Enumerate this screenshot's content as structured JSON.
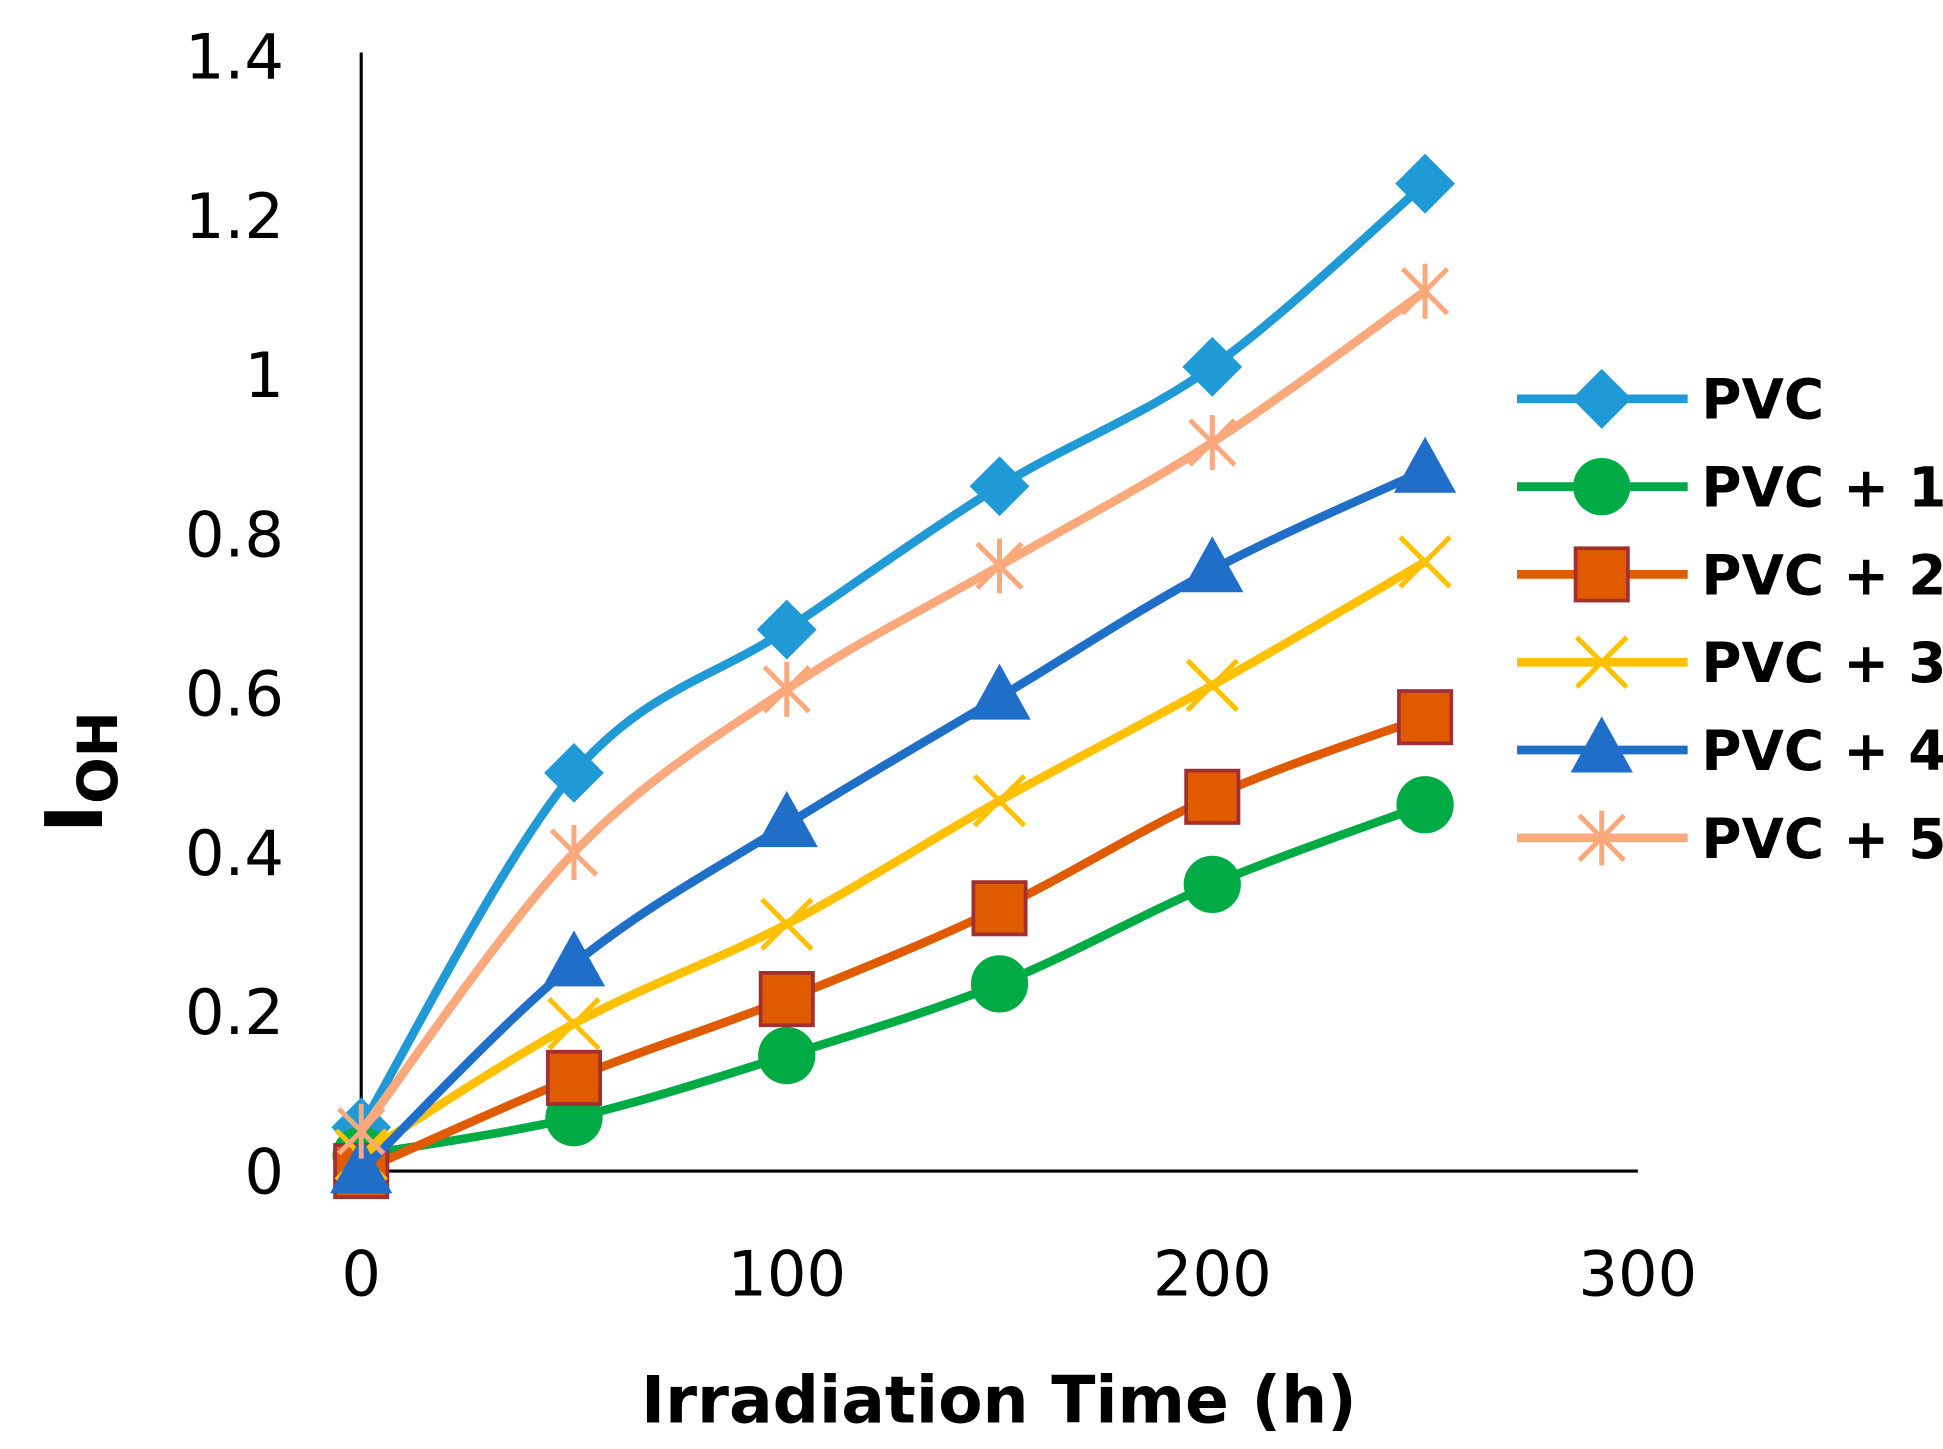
{
  "chart_data": {
    "type": "line",
    "title": "",
    "xlabel": "Irradiation Time (h)",
    "ylabel_main": "I",
    "ylabel_sub": "OH",
    "xlim": [
      0,
      300
    ],
    "ylim": [
      0,
      1.4
    ],
    "xticks": [
      "0",
      "100",
      "200",
      "300"
    ],
    "yticks": [
      "0",
      "0.2",
      "0.4",
      "0.6",
      "0.8",
      "1",
      "1.2",
      "1.4"
    ],
    "grid": false,
    "legend_position": "right",
    "x": [
      0,
      50,
      100,
      150,
      200,
      250
    ],
    "series": [
      {
        "name": "PVC",
        "color": "#1f9ad6",
        "marker": "diamond",
        "values": [
          0.055,
          0.5,
          0.68,
          0.86,
          1.01,
          1.24
        ]
      },
      {
        "name": "PVC + 1",
        "color": "#00aa44",
        "marker": "circle",
        "values": [
          0.02,
          0.067,
          0.145,
          0.235,
          0.36,
          0.46
        ]
      },
      {
        "name": "PVC + 2",
        "color": "#e05a00",
        "marker": "square",
        "values": [
          0.0,
          0.117,
          0.216,
          0.33,
          0.47,
          0.57
        ]
      },
      {
        "name": "PVC + 3",
        "color": "#ffc000",
        "marker": "x",
        "values": [
          0.02,
          0.185,
          0.31,
          0.465,
          0.61,
          0.765
        ]
      },
      {
        "name": "PVC + 4",
        "color": "#1f6fc8",
        "marker": "triangle",
        "values": [
          0.0,
          0.26,
          0.435,
          0.595,
          0.755,
          0.88
        ]
      },
      {
        "name": "PVC + 5",
        "color": "#f9a97c",
        "marker": "star",
        "values": [
          0.05,
          0.4,
          0.605,
          0.76,
          0.915,
          1.105
        ]
      }
    ]
  }
}
